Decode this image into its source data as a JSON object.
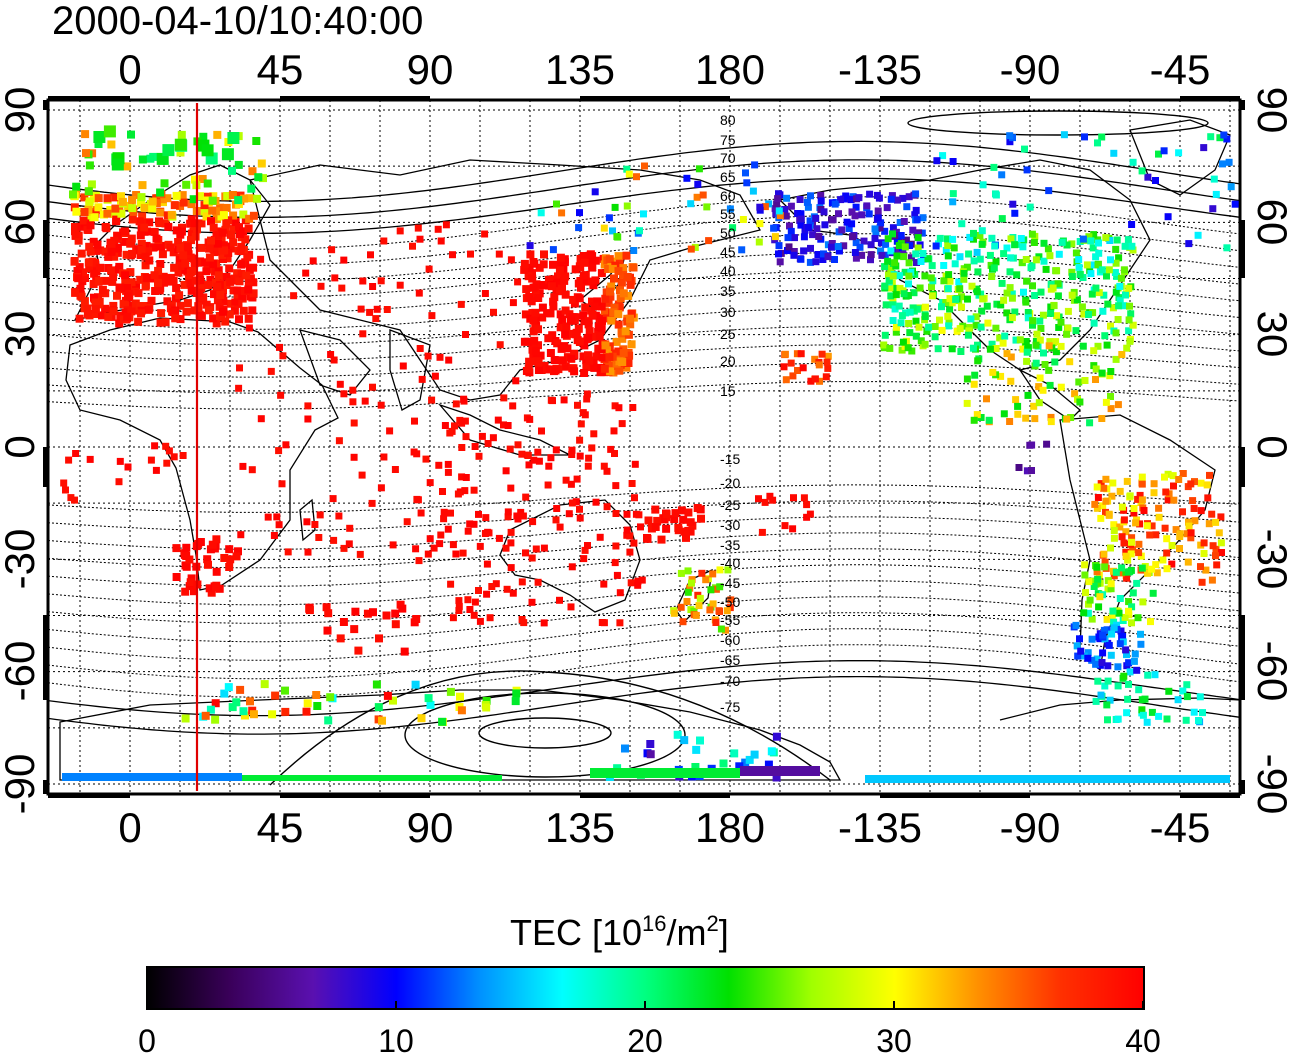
{
  "title": "2000-04-10/10:40:00",
  "map": {
    "top_lon_labels": [
      "0",
      "45",
      "90",
      "135",
      "180",
      "-135",
      "-90",
      "-45"
    ],
    "bottom_lon_labels": [
      "0",
      "45",
      "90",
      "135",
      "180",
      "-135",
      "-90",
      "-45"
    ],
    "left_lat_labels": [
      "90",
      "60",
      "30",
      "0",
      "-30",
      "-60",
      "-90"
    ],
    "right_lat_labels": [
      "90",
      "60",
      "30",
      "0",
      "-30",
      "-60",
      "-90"
    ],
    "terminator_lon": 20,
    "terminator_color": "#e00000",
    "north_contour_labels": [
      "80",
      "75",
      "70",
      "65",
      "60",
      "55",
      "50",
      "45",
      "40",
      "35",
      "30",
      "25",
      "20",
      "15"
    ],
    "south_contour_labels": [
      "-15",
      "-20",
      "-25",
      "-30",
      "-35",
      "-40",
      "-45",
      "-50",
      "-55",
      "-60",
      "-65",
      "-70",
      "-75"
    ]
  },
  "colorbar": {
    "title_main": "TEC  [10",
    "title_sup1": "16",
    "title_mid": "/m",
    "title_sup2": "2",
    "title_end": "]",
    "tick_labels": [
      "0",
      "10",
      "20",
      "30",
      "40"
    ],
    "min": 0,
    "max": 40,
    "stops": [
      "#000000",
      "#3a005a",
      "#5a10b0",
      "#0000ff",
      "#0090ff",
      "#00ffff",
      "#00ff80",
      "#00e000",
      "#a0ff00",
      "#ffff00",
      "#ff9000",
      "#ff3000",
      "#ff0000"
    ]
  },
  "chart_data": {
    "type": "heatmap",
    "title": "2000-04-10/10:40:00",
    "colorbar_label": "TEC [10^16/m^2]",
    "colorbar_range": [
      0,
      40
    ],
    "lon_range_top_axis": [
      0,
      45,
      90,
      135,
      180,
      -135,
      -90,
      -45
    ],
    "lat_range": [
      -90,
      90
    ],
    "regions": [
      {
        "region": "Europe",
        "tec": 40
      },
      {
        "region": "East Asia / Japan",
        "tec": 40
      },
      {
        "region": "Africa / Indian Ocean",
        "tec": 40
      },
      {
        "region": "Australia / Indonesia",
        "tec": 40
      },
      {
        "region": "North America (west)",
        "tec": 10
      },
      {
        "region": "North America (east)",
        "tec": 20
      },
      {
        "region": "South America (north)",
        "tec": 33
      },
      {
        "region": "South America (south)",
        "tec": 12
      },
      {
        "region": "Antarctica (edge)",
        "tec": 13
      }
    ]
  }
}
